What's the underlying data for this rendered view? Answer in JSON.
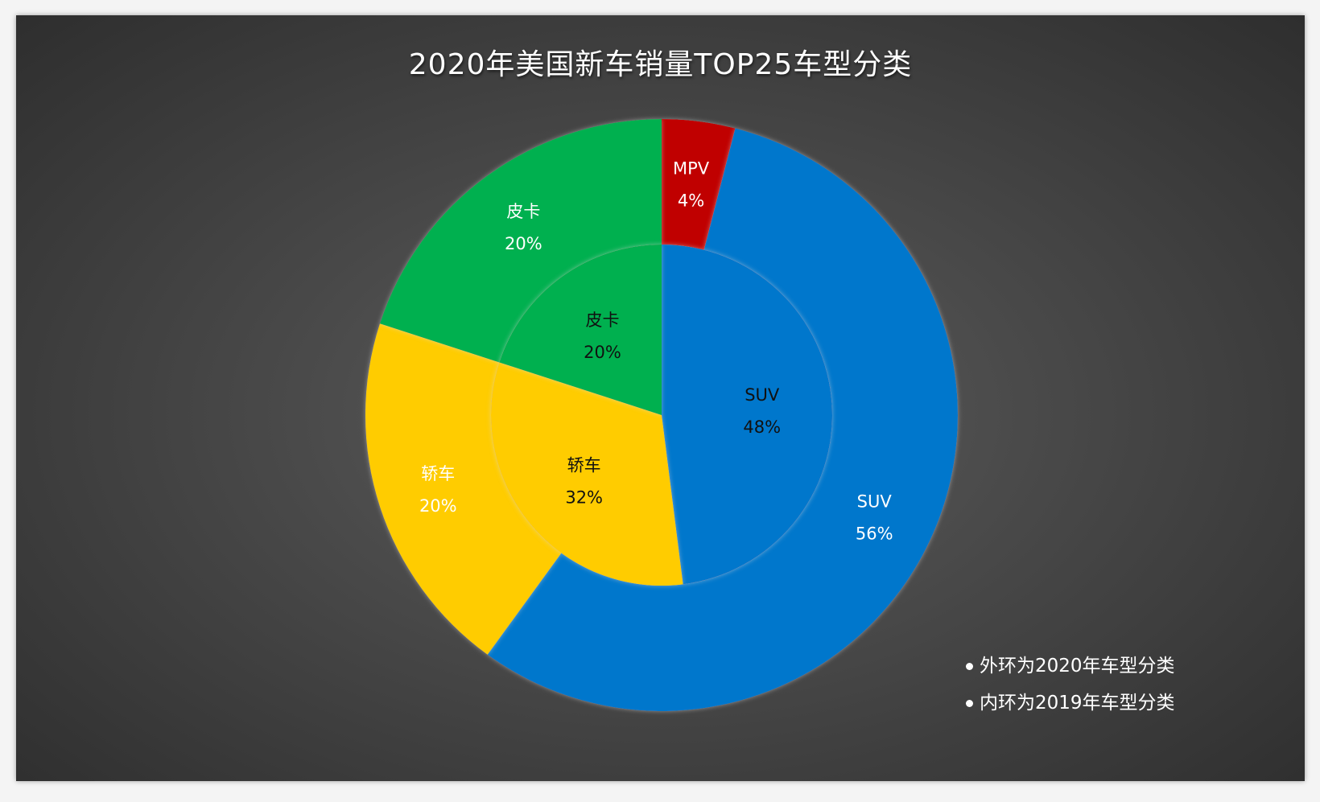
{
  "chart_data": {
    "type": "pie",
    "subtype": "double-donut",
    "title": "2020年美国新车销量TOP25车型分类",
    "series": [
      {
        "name": "外环为2020年车型分类",
        "ring": "outer",
        "categories": [
          "MPV",
          "SUV",
          "轿车",
          "皮卡"
        ],
        "values": [
          4,
          56,
          20,
          20
        ],
        "labels": [
          "4%",
          "56%",
          "20%",
          "20%"
        ]
      },
      {
        "name": "内环为2019年车型分类",
        "ring": "inner",
        "categories": [
          "SUV",
          "轿车",
          "皮卡"
        ],
        "values": [
          48,
          32,
          20
        ],
        "labels": [
          "48%",
          "32%",
          "20%"
        ]
      }
    ],
    "colors": {
      "MPV": "#C00000",
      "SUV": "#0077CC",
      "轿车": "#FFCC00",
      "皮卡": "#00B050"
    },
    "legend": [
      "外环为2020年车型分类",
      "内环为2019年车型分类"
    ],
    "legend_position": "bottom-right"
  }
}
